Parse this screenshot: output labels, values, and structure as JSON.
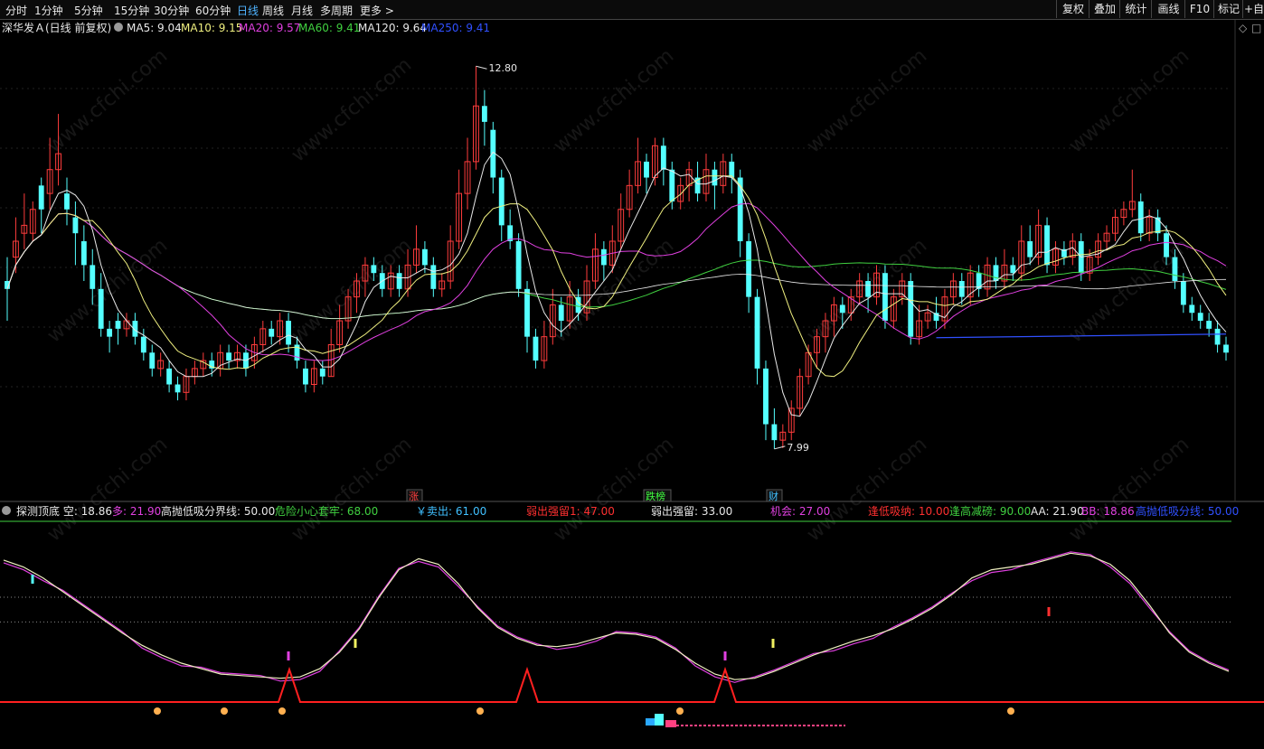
{
  "toolbar": {
    "timeframes": [
      "分时",
      "1分钟",
      "5分钟",
      "15分钟",
      "30分钟",
      "60分钟",
      "日线",
      "周线",
      "月线",
      "多周期",
      "更多 >"
    ],
    "active_timeframe": "日线",
    "right_buttons": [
      "复权",
      "叠加",
      "统计",
      "画线",
      "F10",
      "标记",
      "+自"
    ]
  },
  "price_panel": {
    "title": "深华发Ａ(日线 前复权)",
    "indicators": [
      {
        "label": "MA5: 9.04",
        "color": "#e8e8e8"
      },
      {
        "label": "MA10: 9.15",
        "color": "#f0f080"
      },
      {
        "label": "MA20: 9.57",
        "color": "#e040e0"
      },
      {
        "label": "MA60: 9.41",
        "color": "#40d040"
      },
      {
        "label": "MA120: 9.64",
        "color": "#e8e8e8"
      },
      {
        "label": "MA250: 9.41",
        "color": "#3050ff"
      }
    ],
    "high_label": "12.80",
    "low_label": "7.99",
    "event_tags": [
      {
        "text": "涨",
        "color": "#ff4040"
      },
      {
        "text": "跌榜",
        "color": "#40ff40"
      },
      {
        "text": "财",
        "color": "#40c0ff"
      }
    ]
  },
  "indicator_panel": {
    "items": [
      {
        "label": "探测顶底 空: 18.86",
        "color": "#e8e8e8"
      },
      {
        "label": "多: 21.90",
        "color": "#e040e0"
      },
      {
        "label": "高抛低吸分界线: 50.00",
        "color": "#e8e8e8"
      },
      {
        "label": "危险小心套牢: 68.00",
        "color": "#40d040"
      },
      {
        "label": "￥卖出: 61.00",
        "color": "#40c0ff"
      },
      {
        "label": "弱出强留1: 47.00",
        "color": "#ff3030"
      },
      {
        "label": "弱出强留: 33.00",
        "color": "#e8e8e8"
      },
      {
        "label": "机会: 27.00",
        "color": "#e040e0"
      },
      {
        "label": "逢低吸纳: 10.00",
        "color": "#ff3030"
      },
      {
        "label": "逢高减磅: 90.00",
        "color": "#40d040"
      },
      {
        "label": "AA: 21.90",
        "color": "#e8e8e8"
      },
      {
        "label": "BB: 18.86",
        "color": "#e040e0"
      },
      {
        "label": "高抛低吸分线: 50.00",
        "color": "#3050ff"
      }
    ]
  },
  "watermark": "www.cfchi.com",
  "colors": {
    "up": "#ff3c3c",
    "down": "#54ffff",
    "ma5": "#e8e8e8",
    "ma10": "#f0f080",
    "ma20": "#e040e0",
    "ma60": "#40d040",
    "ma120": "#e8e8e8",
    "ma250": "#3050ff",
    "signal_line": "#ff2020"
  },
  "chart_data": {
    "type": "candlestick",
    "ylim": [
      7.5,
      13.2
    ],
    "candles": [
      [
        10.1,
        10.0,
        10.4,
        9.6
      ],
      [
        10.4,
        10.6,
        10.9,
        10.2
      ],
      [
        10.7,
        10.8,
        11.2,
        10.5
      ],
      [
        10.7,
        11.0,
        11.1,
        10.6
      ],
      [
        11.3,
        11.0,
        11.4,
        10.7
      ],
      [
        11.2,
        11.5,
        11.9,
        11.0
      ],
      [
        11.5,
        11.7,
        12.2,
        11.3
      ],
      [
        11.2,
        11.0,
        11.4,
        10.8
      ],
      [
        10.9,
        10.7,
        11.1,
        10.3
      ],
      [
        10.6,
        10.3,
        10.8,
        10.1
      ],
      [
        10.3,
        10.0,
        10.5,
        9.8
      ],
      [
        10.0,
        9.5,
        10.2,
        9.4
      ],
      [
        9.5,
        9.4,
        9.6,
        9.2
      ],
      [
        9.6,
        9.5,
        9.7,
        9.3
      ],
      [
        9.5,
        9.6,
        9.7,
        9.4
      ],
      [
        9.6,
        9.4,
        9.7,
        9.3
      ],
      [
        9.4,
        9.2,
        9.5,
        9.1
      ],
      [
        9.2,
        9.0,
        9.3,
        8.9
      ],
      [
        9.0,
        9.1,
        9.2,
        8.9
      ],
      [
        9.0,
        8.8,
        9.1,
        8.7
      ],
      [
        8.8,
        8.7,
        8.9,
        8.6
      ],
      [
        8.7,
        8.9,
        9.0,
        8.6
      ],
      [
        8.9,
        9.0,
        9.1,
        8.8
      ],
      [
        9.0,
        9.1,
        9.2,
        8.9
      ],
      [
        9.1,
        9.0,
        9.2,
        8.9
      ],
      [
        9.0,
        9.2,
        9.3,
        8.9
      ],
      [
        9.2,
        9.1,
        9.3,
        9.0
      ],
      [
        9.1,
        9.2,
        9.3,
        9.0
      ],
      [
        9.2,
        9.0,
        9.3,
        8.9
      ],
      [
        9.1,
        9.3,
        9.4,
        9.0
      ],
      [
        9.3,
        9.5,
        9.6,
        9.2
      ],
      [
        9.5,
        9.4,
        9.6,
        9.3
      ],
      [
        9.4,
        9.6,
        9.7,
        9.3
      ],
      [
        9.6,
        9.3,
        9.7,
        9.2
      ],
      [
        9.3,
        9.1,
        9.4,
        9.0
      ],
      [
        9.0,
        8.8,
        9.1,
        8.7
      ],
      [
        8.8,
        9.0,
        9.1,
        8.7
      ],
      [
        9.0,
        8.9,
        9.1,
        8.8
      ],
      [
        8.9,
        9.3,
        9.5,
        8.9
      ],
      [
        9.3,
        9.6,
        9.8,
        9.2
      ],
      [
        9.6,
        9.9,
        10.0,
        9.5
      ],
      [
        9.9,
        10.1,
        10.2,
        9.7
      ],
      [
        10.1,
        10.3,
        10.4,
        9.9
      ],
      [
        10.3,
        10.2,
        10.4,
        10.1
      ],
      [
        10.2,
        10.0,
        10.3,
        9.9
      ],
      [
        10.0,
        10.2,
        10.3,
        9.9
      ],
      [
        10.2,
        10.0,
        10.3,
        9.9
      ],
      [
        10.0,
        10.3,
        10.5,
        9.9
      ],
      [
        10.3,
        10.5,
        10.8,
        10.2
      ],
      [
        10.5,
        10.3,
        10.6,
        10.2
      ],
      [
        10.3,
        10.0,
        10.4,
        9.9
      ],
      [
        10.0,
        10.1,
        10.2,
        9.9
      ],
      [
        10.1,
        10.6,
        10.8,
        10.0
      ],
      [
        10.6,
        11.2,
        11.5,
        10.5
      ],
      [
        11.2,
        11.6,
        11.9,
        11.0
      ],
      [
        11.6,
        12.3,
        12.8,
        11.5
      ],
      [
        12.3,
        12.1,
        12.5,
        11.8
      ],
      [
        12.0,
        11.4,
        12.1,
        11.2
      ],
      [
        11.4,
        10.8,
        11.5,
        10.6
      ],
      [
        10.8,
        10.6,
        11.0,
        10.5
      ],
      [
        10.6,
        10.0,
        10.7,
        9.9
      ],
      [
        10.0,
        9.4,
        10.1,
        9.2
      ],
      [
        9.4,
        9.1,
        9.5,
        9.0
      ],
      [
        9.1,
        9.4,
        9.6,
        9.0
      ],
      [
        9.4,
        9.8,
        10.0,
        9.3
      ],
      [
        9.8,
        9.6,
        9.9,
        9.4
      ],
      [
        9.6,
        9.9,
        10.1,
        9.5
      ],
      [
        9.9,
        9.7,
        10.0,
        9.6
      ],
      [
        9.7,
        10.1,
        10.3,
        9.6
      ],
      [
        10.1,
        10.5,
        10.7,
        10.0
      ],
      [
        10.5,
        10.3,
        10.6,
        10.1
      ],
      [
        10.3,
        10.6,
        10.8,
        10.2
      ],
      [
        10.6,
        11.0,
        11.2,
        10.5
      ],
      [
        11.0,
        11.3,
        11.5,
        10.9
      ],
      [
        11.3,
        11.6,
        11.9,
        11.2
      ],
      [
        11.6,
        11.4,
        11.7,
        11.2
      ],
      [
        11.4,
        11.8,
        11.9,
        11.3
      ],
      [
        11.8,
        11.5,
        11.9,
        11.3
      ],
      [
        11.5,
        11.1,
        11.6,
        11.0
      ],
      [
        11.1,
        11.3,
        11.4,
        11.0
      ],
      [
        11.3,
        11.5,
        11.6,
        11.1
      ],
      [
        11.4,
        11.2,
        11.6,
        11.1
      ],
      [
        11.2,
        11.5,
        11.7,
        11.1
      ],
      [
        11.5,
        11.3,
        11.6,
        11.0
      ],
      [
        11.3,
        11.6,
        11.7,
        11.2
      ],
      [
        11.6,
        11.4,
        11.7,
        11.2
      ],
      [
        11.4,
        10.6,
        11.5,
        10.4
      ],
      [
        10.6,
        9.9,
        10.7,
        9.7
      ],
      [
        9.9,
        9.0,
        10.0,
        8.8
      ],
      [
        9.0,
        8.3,
        9.1,
        8.1
      ],
      [
        8.3,
        8.1,
        8.5,
        7.99
      ],
      [
        8.1,
        8.2,
        8.3,
        8.0
      ],
      [
        8.2,
        8.5,
        8.6,
        8.1
      ],
      [
        8.5,
        8.9,
        9.0,
        8.4
      ],
      [
        8.9,
        9.2,
        9.3,
        8.8
      ],
      [
        9.2,
        9.4,
        9.5,
        9.0
      ],
      [
        9.4,
        9.6,
        9.7,
        9.2
      ],
      [
        9.6,
        9.8,
        9.9,
        9.4
      ],
      [
        9.8,
        9.7,
        9.9,
        9.5
      ],
      [
        9.7,
        9.9,
        10.0,
        9.6
      ],
      [
        9.9,
        10.1,
        10.2,
        9.8
      ],
      [
        10.1,
        9.9,
        10.2,
        9.7
      ],
      [
        9.9,
        10.2,
        10.3,
        9.8
      ],
      [
        10.2,
        9.6,
        10.3,
        9.5
      ],
      [
        9.6,
        9.9,
        10.0,
        9.5
      ],
      [
        9.9,
        10.1,
        10.2,
        9.8
      ],
      [
        10.1,
        9.4,
        10.2,
        9.3
      ],
      [
        9.4,
        9.6,
        9.8,
        9.3
      ],
      [
        9.6,
        9.7,
        9.8,
        9.5
      ],
      [
        9.7,
        9.6,
        9.9,
        9.5
      ],
      [
        9.6,
        9.9,
        10.0,
        9.5
      ],
      [
        9.9,
        10.1,
        10.2,
        9.8
      ],
      [
        10.1,
        9.9,
        10.2,
        9.8
      ],
      [
        9.9,
        10.2,
        10.3,
        9.8
      ],
      [
        10.2,
        10.0,
        10.3,
        9.9
      ],
      [
        10.0,
        10.3,
        10.4,
        9.9
      ],
      [
        10.3,
        10.1,
        10.4,
        10.0
      ],
      [
        10.1,
        10.3,
        10.5,
        10.0
      ],
      [
        10.3,
        10.2,
        10.4,
        10.1
      ],
      [
        10.2,
        10.6,
        10.8,
        10.1
      ],
      [
        10.6,
        10.4,
        10.8,
        10.3
      ],
      [
        10.4,
        10.8,
        11.0,
        10.3
      ],
      [
        10.8,
        10.3,
        10.9,
        10.2
      ],
      [
        10.3,
        10.5,
        10.6,
        10.2
      ],
      [
        10.5,
        10.4,
        10.6,
        10.3
      ],
      [
        10.4,
        10.6,
        10.7,
        10.3
      ],
      [
        10.6,
        10.2,
        10.7,
        10.1
      ],
      [
        10.2,
        10.4,
        10.5,
        10.1
      ],
      [
        10.4,
        10.6,
        10.7,
        10.3
      ],
      [
        10.6,
        10.7,
        10.8,
        10.5
      ],
      [
        10.7,
        10.9,
        11.0,
        10.6
      ],
      [
        10.9,
        11.0,
        11.1,
        10.8
      ],
      [
        11.0,
        11.1,
        11.5,
        10.9
      ],
      [
        11.1,
        10.7,
        11.2,
        10.6
      ],
      [
        10.7,
        10.9,
        11.0,
        10.6
      ],
      [
        10.9,
        10.7,
        11.0,
        10.6
      ],
      [
        10.7,
        10.4,
        10.8,
        10.3
      ],
      [
        10.4,
        10.1,
        10.5,
        10.0
      ],
      [
        10.1,
        9.8,
        10.2,
        9.7
      ],
      [
        9.8,
        9.7,
        9.9,
        9.6
      ],
      [
        9.7,
        9.6,
        9.8,
        9.5
      ],
      [
        9.6,
        9.5,
        9.7,
        9.4
      ],
      [
        9.5,
        9.3,
        9.6,
        9.2
      ],
      [
        9.3,
        9.2,
        9.4,
        9.1
      ]
    ]
  }
}
